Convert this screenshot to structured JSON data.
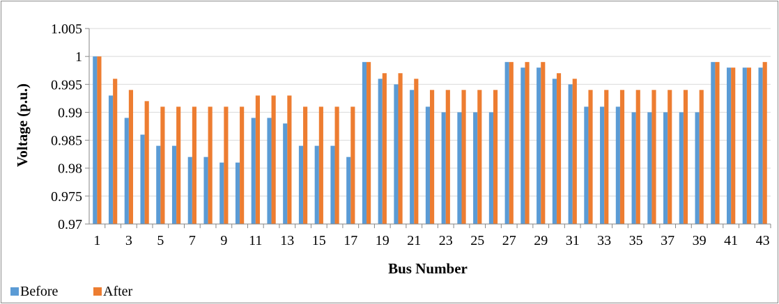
{
  "chart_data": {
    "type": "bar",
    "title": "",
    "xlabel": "Bus Number",
    "ylabel": "Voltage  (p.u.)",
    "ylim": [
      0.97,
      1.005
    ],
    "yticks": [
      "0.97",
      "0.975",
      "0.98",
      "0.985",
      "0.99",
      "0.995",
      "1",
      "1.005"
    ],
    "categories": [
      "1",
      "2",
      "3",
      "4",
      "5",
      "6",
      "7",
      "8",
      "9",
      "10",
      "11",
      "12",
      "13",
      "14",
      "15",
      "16",
      "17",
      "18",
      "19",
      "20",
      "21",
      "22",
      "23",
      "24",
      "25",
      "26",
      "27",
      "28",
      "29",
      "30",
      "31",
      "32",
      "33",
      "34",
      "35",
      "36",
      "37",
      "38",
      "39",
      "40",
      "41",
      "42",
      "43"
    ],
    "xtick_labels": [
      "1",
      "",
      "3",
      "",
      "5",
      "",
      "7",
      "",
      "9",
      "",
      "11",
      "",
      "13",
      "",
      "15",
      "",
      "17",
      "",
      "19",
      "",
      "21",
      "",
      "23",
      "",
      "25",
      "",
      "27",
      "",
      "29",
      "",
      "31",
      "",
      "33",
      "",
      "35",
      "",
      "37",
      "",
      "39",
      "",
      "41",
      "",
      "43"
    ],
    "series": [
      {
        "name": "Before",
        "color": "#5b9bd5",
        "values": [
          1.0,
          0.993,
          0.989,
          0.986,
          0.984,
          0.984,
          0.982,
          0.982,
          0.981,
          0.981,
          0.989,
          0.989,
          0.988,
          0.984,
          0.984,
          0.984,
          0.982,
          0.999,
          0.996,
          0.995,
          0.994,
          0.991,
          0.99,
          0.99,
          0.99,
          0.99,
          0.999,
          0.998,
          0.998,
          0.996,
          0.995,
          0.991,
          0.991,
          0.991,
          0.99,
          0.99,
          0.99,
          0.99,
          0.99,
          0.999,
          0.998,
          0.998,
          0.998
        ]
      },
      {
        "name": "After",
        "color": "#ed7d31",
        "values": [
          1.0,
          0.996,
          0.994,
          0.992,
          0.991,
          0.991,
          0.991,
          0.991,
          0.991,
          0.991,
          0.993,
          0.993,
          0.993,
          0.991,
          0.991,
          0.991,
          0.991,
          0.999,
          0.997,
          0.997,
          0.996,
          0.994,
          0.994,
          0.994,
          0.994,
          0.994,
          0.999,
          0.999,
          0.999,
          0.997,
          0.996,
          0.994,
          0.994,
          0.994,
          0.994,
          0.994,
          0.994,
          0.994,
          0.994,
          0.999,
          0.998,
          0.998,
          0.999
        ]
      }
    ],
    "grid": "horizontal",
    "legend": "bottom-left"
  }
}
